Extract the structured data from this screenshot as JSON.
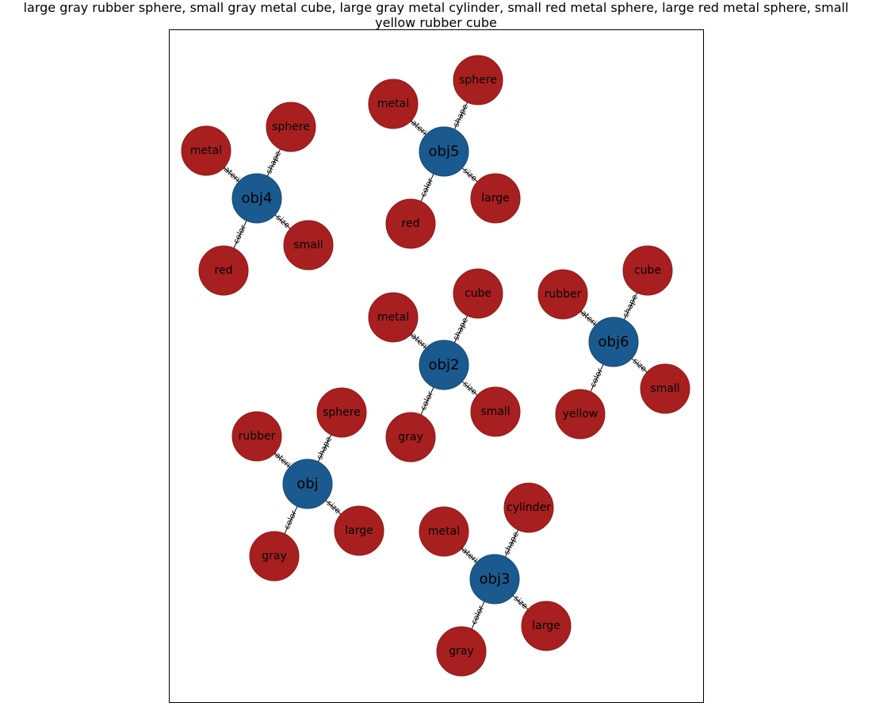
{
  "title_lines": [
    "large gray rubber sphere, small gray metal cube, large gray metal cylinder, small red metal sphere, large red metal sphere, small",
    "yellow rubber cube"
  ],
  "colors": {
    "object_node": "#1a5a8e",
    "attribute_node": "#a81f1f",
    "frame": "#000000"
  },
  "graphs": [
    {
      "object": "obj",
      "attributes": [
        {
          "edge": "color",
          "value": "gray"
        },
        {
          "edge": "material",
          "value": "rubber"
        },
        {
          "edge": "shape",
          "value": "sphere"
        },
        {
          "edge": "size",
          "value": "large"
        }
      ]
    },
    {
      "object": "obj2",
      "attributes": [
        {
          "edge": "color",
          "value": "gray"
        },
        {
          "edge": "material",
          "value": "metal"
        },
        {
          "edge": "shape",
          "value": "cube"
        },
        {
          "edge": "size",
          "value": "small"
        }
      ]
    },
    {
      "object": "obj3",
      "attributes": [
        {
          "edge": "color",
          "value": "gray"
        },
        {
          "edge": "material",
          "value": "metal"
        },
        {
          "edge": "shape",
          "value": "cylinder"
        },
        {
          "edge": "size",
          "value": "large"
        }
      ]
    },
    {
      "object": "obj4",
      "attributes": [
        {
          "edge": "color",
          "value": "red"
        },
        {
          "edge": "material",
          "value": "metal"
        },
        {
          "edge": "shape",
          "value": "sphere"
        },
        {
          "edge": "size",
          "value": "small"
        }
      ]
    },
    {
      "object": "obj5",
      "attributes": [
        {
          "edge": "color",
          "value": "red"
        },
        {
          "edge": "material",
          "value": "metal"
        },
        {
          "edge": "shape",
          "value": "sphere"
        },
        {
          "edge": "size",
          "value": "large"
        }
      ]
    },
    {
      "object": "obj6",
      "attributes": [
        {
          "edge": "color",
          "value": "yellow"
        },
        {
          "edge": "material",
          "value": "rubber"
        },
        {
          "edge": "shape",
          "value": "cube"
        },
        {
          "edge": "size",
          "value": "small"
        }
      ]
    }
  ]
}
